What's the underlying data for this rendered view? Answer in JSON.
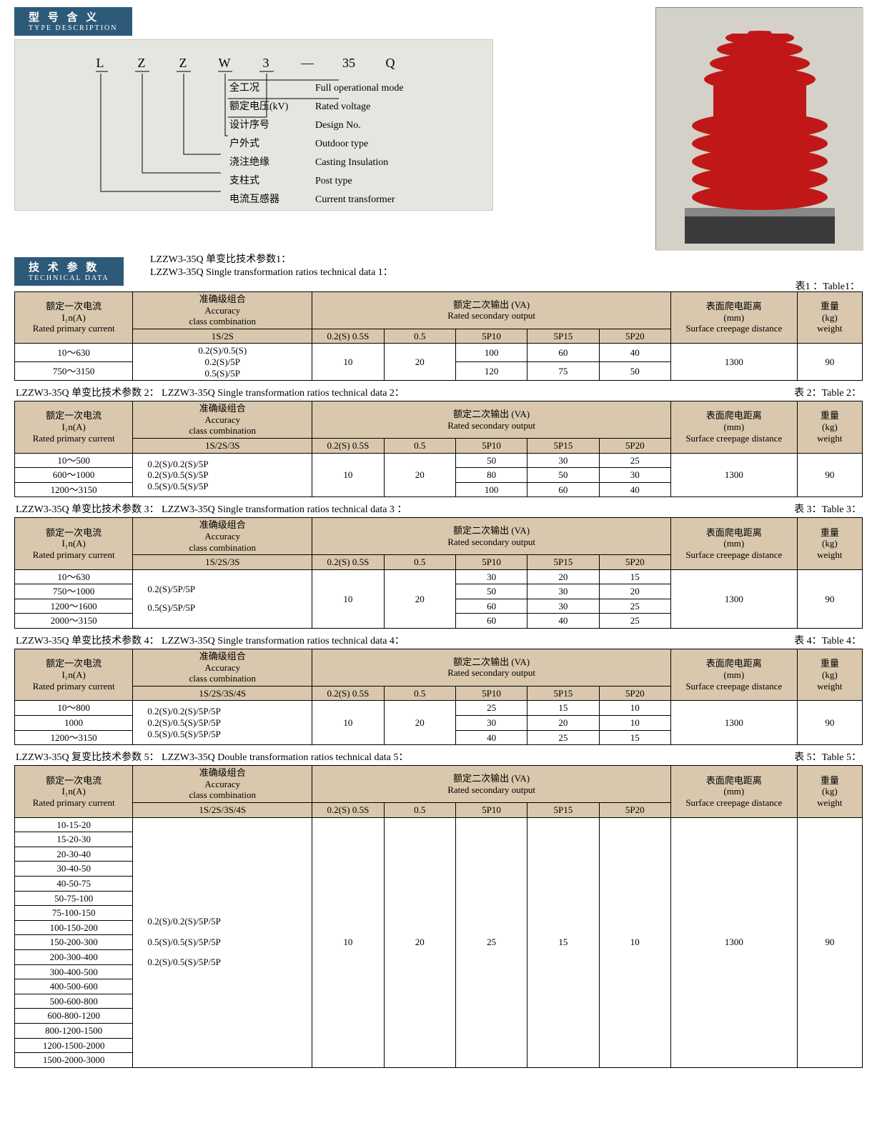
{
  "type_description": {
    "header_cn": "型 号 含 义",
    "header_en": "TYPE DESCRIPTION",
    "letters": [
      "L",
      "Z",
      "Z",
      "W",
      "3",
      "—",
      "35",
      "Q"
    ],
    "rows": [
      {
        "cn": "全工况",
        "en": "Full operational mode"
      },
      {
        "cn": "额定电压(kV)",
        "en": "Rated voltage"
      },
      {
        "cn": "设计序号",
        "en": "Design No."
      },
      {
        "cn": "户外式",
        "en": "Outdoor type"
      },
      {
        "cn": "浇注绝缘",
        "en": "Casting Insulation"
      },
      {
        "cn": "支柱式",
        "en": "Post type"
      },
      {
        "cn": "电流互感器",
        "en": "Current transformer"
      }
    ]
  },
  "technical_data": {
    "header_cn": "技 术 参 数",
    "header_en": "TECHNICAL DATA",
    "caption1": "LZZW3-35Q 单变比技术参数1：",
    "caption1_en": "LZZW3-35Q Single transformation ratios technical data 1：",
    "table1_right": "表1 ：Table1："
  },
  "common_headers": {
    "primary_cn": "额定一次电流",
    "primary_sub": "I₁n(A)",
    "primary_en": "Rated primary current",
    "accuracy_cn": "准确级组合",
    "accuracy_mid": "Accuracy",
    "accuracy_en": "class combination",
    "output_cn": "额定二次输出 (VA)",
    "output_en": "Rated secondary output",
    "creep_cn": "表面爬电距离",
    "creep_mm": "(mm)",
    "creep_en": "Surface creepage distance",
    "weight_cn": "重量",
    "weight_kg": "(kg)",
    "weight_en": "weight",
    "sub1S2S": "1S/2S",
    "sub1S2S3S": "1S/2S/3S",
    "sub1S2S3S4S": "1S/2S/3S/4S",
    "c1": "0.2(S) 0.5S",
    "c1b": "0.2(S)  0.5S",
    "c2": "0.5",
    "c3": "5P10",
    "c4": "5P15",
    "c5": "5P20"
  },
  "table1": {
    "rows": [
      {
        "primary": "10～630",
        "p10": "100",
        "p15": "60",
        "p20": "40"
      },
      {
        "primary": "750～3150",
        "p10": "120",
        "p15": "75",
        "p20": "50"
      }
    ],
    "accuracy": "0.2(S)/0.5(S)\n0.2(S)/5P\n0.5(S)/5P",
    "v02": "10",
    "v05": "20",
    "creep": "1300",
    "weight": "90"
  },
  "table2": {
    "label_l": "LZZW3-35Q 单变比技术参数 2：  LZZW3-35Q Single transformation ratios technical data 2：",
    "label_r": "表 2：Table 2：",
    "rows": [
      {
        "primary": "10～500",
        "p10": "50",
        "p15": "30",
        "p20": "25"
      },
      {
        "primary": "600～1000",
        "p10": "80",
        "p15": "50",
        "p20": "30"
      },
      {
        "primary": "1200～3150",
        "p10": "100",
        "p15": "60",
        "p20": "40"
      }
    ],
    "accuracy": "0.2(S)/0.2(S)/5P\n0.2(S)/0.5(S)/5P\n0.5(S)/0.5(S)/5P",
    "v02": "10",
    "v05": "20",
    "creep": "1300",
    "weight": "90"
  },
  "table3": {
    "label_l": "LZZW3-35Q 单变比技术参数 3：  LZZW3-35Q Single transformation ratios technical data 3 ：",
    "label_r": "表 3：Table 3：",
    "rows": [
      {
        "primary": "10～630",
        "p10": "30",
        "p15": "20",
        "p20": "15"
      },
      {
        "primary": "750～1000",
        "p10": "50",
        "p15": "30",
        "p20": "20"
      },
      {
        "primary": "1200～1600",
        "p10": "60",
        "p15": "30",
        "p20": "25"
      },
      {
        "primary": "2000～3150",
        "p10": "60",
        "p15": "40",
        "p20": "25"
      }
    ],
    "accuracy": "0.2(S)/5P/5P\n0.5(S)/5P/5P",
    "v02": "10",
    "v05": "20",
    "creep": "1300",
    "weight": "90"
  },
  "table4": {
    "label_l": "LZZW3-35Q 单变比技术参数 4：  LZZW3-35Q Single transformation ratios technical data 4：",
    "label_r": "表 4：Table 4：",
    "rows": [
      {
        "primary": "10～800",
        "p10": "25",
        "p15": "15",
        "p20": "10"
      },
      {
        "primary": "1000",
        "p10": "30",
        "p15": "20",
        "p20": "10"
      },
      {
        "primary": "1200～3150",
        "p10": "40",
        "p15": "25",
        "p20": "15"
      }
    ],
    "accuracy": "0.2(S)/0.2(S)/5P/5P\n0.2(S)/0.5(S)/5P/5P\n0.5(S)/0.5(S)/5P/5P",
    "v02": "10",
    "v05": "20",
    "creep": "1300",
    "weight": "90"
  },
  "table5": {
    "label_l": "LZZW3-35Q 复变比技术参数 5：  LZZW3-35Q Double transformation ratios technical data 5：",
    "label_r": "表 5：Table 5：",
    "rows": [
      "10-15-20",
      "15-20-30",
      "20-30-40",
      "30-40-50",
      "40-50-75",
      "50-75-100",
      "75-100-150",
      "100-150-200",
      "150-200-300",
      "200-300-400",
      "300-400-500",
      "400-500-600",
      "500-600-800",
      "600-800-1200",
      "800-1200-1500",
      "1200-1500-2000",
      "1500-2000-3000"
    ],
    "accuracy": "0.2(S)/0.2(S)/5P/5P\n0.5(S)/0.5(S)/5P/5P\n0.2(S)/0.5(S)/5P/5P",
    "v02": "10",
    "v05": "20",
    "p10": "25",
    "p15": "15",
    "p20": "10",
    "creep": "1300",
    "weight": "90"
  }
}
